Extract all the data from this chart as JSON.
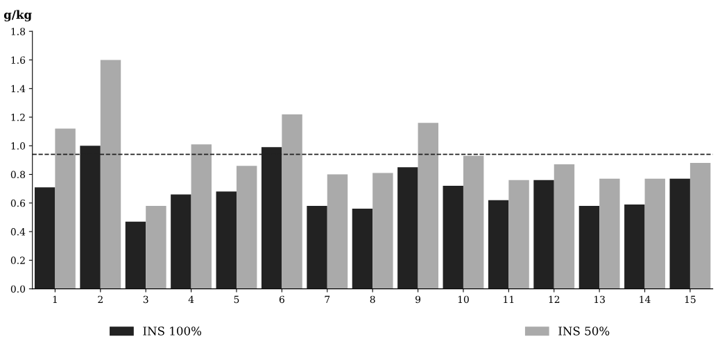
{
  "chart_data": {
    "type": "bar",
    "ylabel": "g/kg",
    "categories": [
      "1",
      "2",
      "3",
      "4",
      "5",
      "6",
      "7",
      "8",
      "9",
      "10",
      "11",
      "12",
      "13",
      "14",
      "15"
    ],
    "series": [
      {
        "name": "INS 100%",
        "color": "#222222",
        "values": [
          0.71,
          1.0,
          0.47,
          0.66,
          0.68,
          0.99,
          0.58,
          0.56,
          0.85,
          0.72,
          0.62,
          0.76,
          0.58,
          0.59,
          0.77
        ]
      },
      {
        "name": "INS 50%",
        "color": "#aaaaaa",
        "values": [
          1.12,
          1.6,
          0.58,
          1.01,
          0.86,
          1.22,
          0.8,
          0.81,
          1.16,
          0.93,
          0.76,
          0.87,
          0.77,
          0.77,
          0.88
        ]
      }
    ],
    "ylim": [
      0,
      1.8
    ],
    "yticks": [
      {
        "value": 0,
        "label": "0.0"
      },
      {
        "value": 0.2,
        "label": "0.2"
      },
      {
        "value": 0.4,
        "label": "0.4"
      },
      {
        "value": 0.6,
        "label": "0.6"
      },
      {
        "value": 0.8,
        "label": "0.8"
      },
      {
        "value": 1.0,
        "label": "1.0"
      },
      {
        "value": 1.2,
        "label": "1.2"
      },
      {
        "value": 1.4,
        "label": "1.4"
      },
      {
        "value": 1.6,
        "label": "1.6"
      },
      {
        "value": 1.8,
        "label": "1.8"
      }
    ],
    "ref_lines": [
      {
        "axis": "y",
        "value": 0.94,
        "color": "#222222",
        "line_style": "dashed"
      }
    ],
    "grid": false,
    "legend": "bottom"
  }
}
